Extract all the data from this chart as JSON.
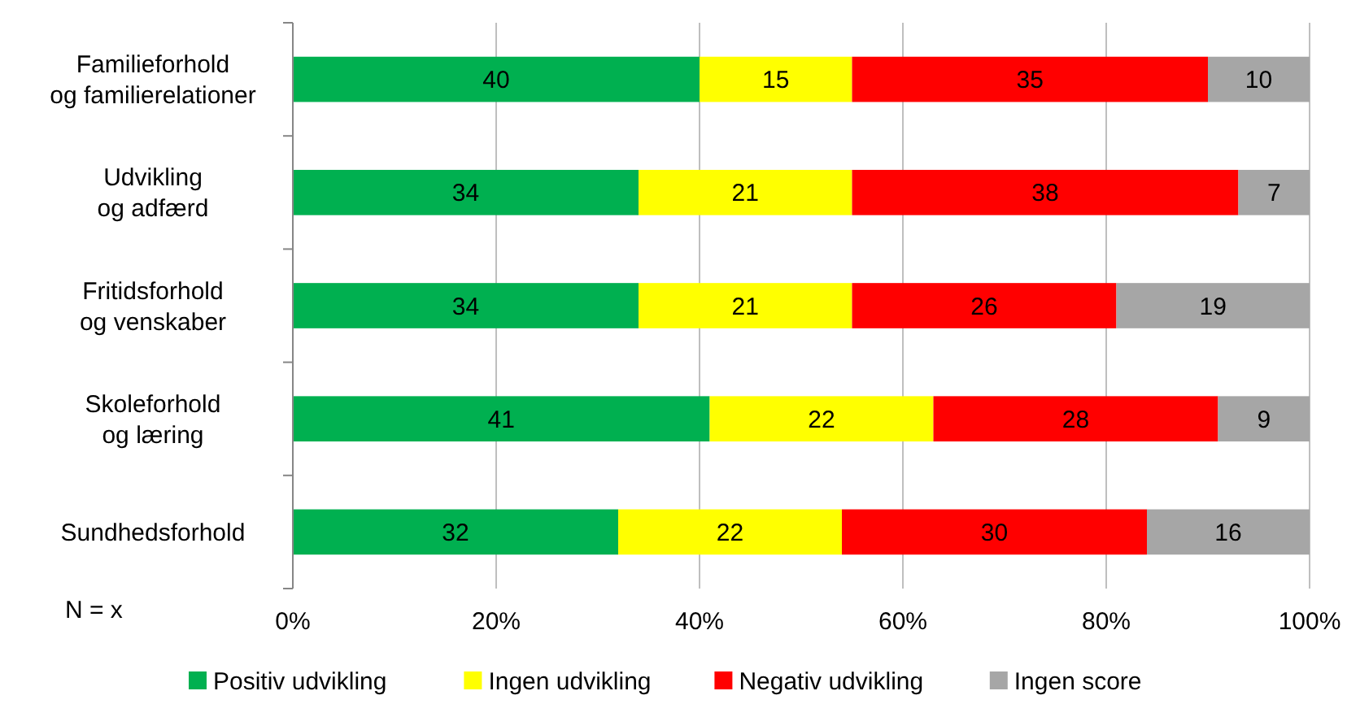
{
  "chart_data": {
    "type": "bar",
    "orientation": "horizontal",
    "stacked": true,
    "data_labels": true,
    "grid": "x",
    "legend": "bottom",
    "categories": [
      "Familieforhold\nog familierelationer",
      "Udvikling\nog adfærd",
      "Fritidsforhold\nog venskaber",
      "Skoleforhold\nog læring",
      "Sundhedsforhold"
    ],
    "series": [
      {
        "name": "Positiv udvikling",
        "color": "#00b050",
        "values": [
          40,
          34,
          34,
          41,
          32
        ]
      },
      {
        "name": "Ingen udvikling",
        "color": "#ffff00",
        "values": [
          15,
          21,
          21,
          22,
          22
        ]
      },
      {
        "name": "Negativ udvikling",
        "color": "#ff0000",
        "values": [
          35,
          38,
          26,
          28,
          30
        ]
      },
      {
        "name": "Ingen score",
        "color": "#a6a6a6",
        "values": [
          10,
          7,
          19,
          9,
          16
        ]
      }
    ],
    "xlim": [
      0,
      100
    ],
    "xticks": [
      {
        "value": 0,
        "label": "0%"
      },
      {
        "value": 20,
        "label": "20%"
      },
      {
        "value": 40,
        "label": "40%"
      },
      {
        "value": 60,
        "label": "60%"
      },
      {
        "value": 80,
        "label": "80%"
      },
      {
        "value": 100,
        "label": "100%"
      }
    ],
    "annotations": [
      "N = x"
    ]
  }
}
